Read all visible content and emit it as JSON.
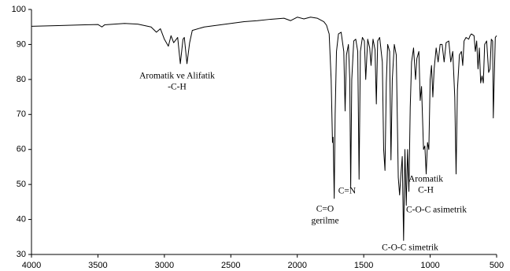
{
  "chart_data": {
    "type": "line",
    "x": [
      4000,
      3800,
      3600,
      3500,
      3470,
      3450,
      3300,
      3200,
      3100,
      3060,
      3030,
      3000,
      2970,
      2950,
      2930,
      2900,
      2880,
      2860,
      2850,
      2830,
      2810,
      2790,
      2700,
      2600,
      2500,
      2400,
      2300,
      2200,
      2100,
      2050,
      2000,
      1950,
      1900,
      1850,
      1800,
      1780,
      1760,
      1745,
      1735,
      1730,
      1722,
      1715,
      1705,
      1690,
      1670,
      1650,
      1640,
      1630,
      1615,
      1605,
      1598,
      1590,
      1575,
      1560,
      1545,
      1535,
      1525,
      1510,
      1495,
      1485,
      1470,
      1455,
      1445,
      1430,
      1415,
      1405,
      1395,
      1380,
      1360,
      1350,
      1340,
      1330,
      1320,
      1305,
      1295,
      1285,
      1270,
      1255,
      1240,
      1230,
      1220,
      1210,
      1200,
      1190,
      1180,
      1170,
      1160,
      1150,
      1140,
      1125,
      1110,
      1100,
      1085,
      1075,
      1065,
      1050,
      1040,
      1030,
      1020,
      1010,
      1000,
      990,
      980,
      970,
      955,
      940,
      925,
      910,
      895,
      880,
      860,
      845,
      830,
      815,
      805,
      795,
      780,
      765,
      755,
      745,
      730,
      710,
      700,
      690,
      670,
      660,
      650,
      640,
      630,
      620,
      610,
      600,
      590,
      575,
      560,
      550,
      540,
      530,
      525,
      518,
      510,
      500
    ],
    "values": [
      95.2,
      95.4,
      95.6,
      95.7,
      95.0,
      95.6,
      96.0,
      95.8,
      95.0,
      93.5,
      94.5,
      91.5,
      89.5,
      92.5,
      90.5,
      92.0,
      84.5,
      91.5,
      92.0,
      84.5,
      90.5,
      94.0,
      95.0,
      95.5,
      96.0,
      96.5,
      96.8,
      97.2,
      97.5,
      96.8,
      97.8,
      97.3,
      97.8,
      97.5,
      96.5,
      95.5,
      93.0,
      80.0,
      62.0,
      63.5,
      46.0,
      70.0,
      88.0,
      93.0,
      93.5,
      88.0,
      71.0,
      87.0,
      90.0,
      80.0,
      49.0,
      80.0,
      91.0,
      91.5,
      88.0,
      51.5,
      88.0,
      92.0,
      91.0,
      80.0,
      91.5,
      89.0,
      84.0,
      91.5,
      88.5,
      73.0,
      91.0,
      92.0,
      85.0,
      60.0,
      54.0,
      79.0,
      90.0,
      88.0,
      57.0,
      80.0,
      90.0,
      87.0,
      52.0,
      47.0,
      53.0,
      58.0,
      34.0,
      60.0,
      44.0,
      60.0,
      48.0,
      72.0,
      85.0,
      89.0,
      80.0,
      86.0,
      88.0,
      74.0,
      78.0,
      60.0,
      61.0,
      53.0,
      62.0,
      60.0,
      80.0,
      84.0,
      75.0,
      83.0,
      89.0,
      85.0,
      90.0,
      90.0,
      85.0,
      90.5,
      91.0,
      85.0,
      88.0,
      75.0,
      53.0,
      77.0,
      87.0,
      88.0,
      84.0,
      91.0,
      92.0,
      91.5,
      92.5,
      93.0,
      92.5,
      88.0,
      91.0,
      83.0,
      89.0,
      79.0,
      81.0,
      79.0,
      90.0,
      91.0,
      82.0,
      83.0,
      91.5,
      91.0,
      69.0,
      80.0,
      92.0,
      92.5
    ],
    "color": "#000000",
    "xlim": [
      4000,
      500
    ],
    "xticks": [
      4000,
      3500,
      3000,
      2500,
      2000,
      1500,
      1000,
      500
    ],
    "ylim": [
      30,
      100
    ],
    "yticks": [
      30,
      40,
      50,
      60,
      70,
      80,
      90,
      100
    ],
    "grid": false,
    "annotations": [
      "Aromatik ve Alifatik",
      "-C-H",
      "C=O",
      "gerilme",
      "C=N",
      "Aromatik",
      "C-H",
      "C-O-C asimetrik",
      "C-O-C simetrik"
    ]
  }
}
